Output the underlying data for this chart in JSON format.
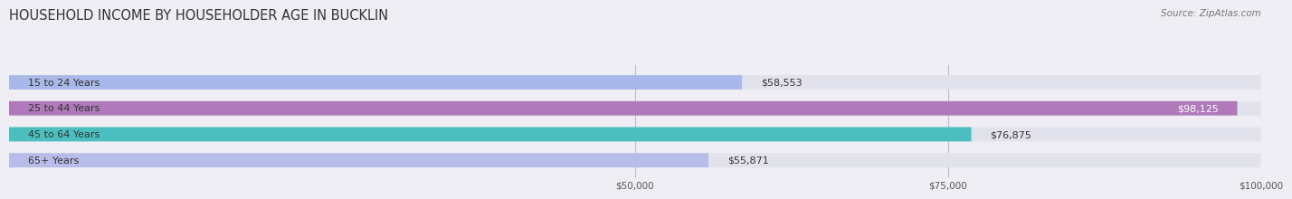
{
  "title": "HOUSEHOLD INCOME BY HOUSEHOLDER AGE IN BUCKLIN",
  "source": "Source: ZipAtlas.com",
  "categories": [
    "15 to 24 Years",
    "25 to 44 Years",
    "45 to 64 Years",
    "65+ Years"
  ],
  "values": [
    58553,
    98125,
    76875,
    55871
  ],
  "bar_colors": [
    "#a8b8e8",
    "#b07aba",
    "#4bbfbf",
    "#b8bce8"
  ],
  "value_labels": [
    "$58,553",
    "$98,125",
    "$76,875",
    "$55,871"
  ],
  "xmin": 0,
  "xmax": 100000,
  "xticks": [
    50000,
    75000,
    100000
  ],
  "xtick_labels": [
    "$50,000",
    "$75,000",
    "$100,000"
  ],
  "background_color": "#eeeef4",
  "bar_bg_color": "#e2e2ec",
  "title_fontsize": 10.5,
  "source_fontsize": 7.5,
  "label_fontsize": 8,
  "value_fontsize": 8
}
